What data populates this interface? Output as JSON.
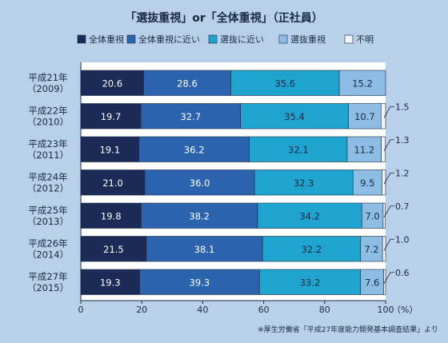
{
  "chart_data": {
    "type": "bar",
    "orientation": "horizontal",
    "stacked": true,
    "title": "「選抜重視」or「全体重視」（正社員）",
    "categories": [
      [
        "平成21年",
        "（2009）"
      ],
      [
        "平成22年",
        "（2010）"
      ],
      [
        "平成23年",
        "（2011）"
      ],
      [
        "平成24年",
        "（2012）"
      ],
      [
        "平成25年",
        "（2013）"
      ],
      [
        "平成26年",
        "（2014）"
      ],
      [
        "平成27年",
        "（2015）"
      ]
    ],
    "series": [
      {
        "name": "全体重視",
        "color": "#1b2a57",
        "text_color": "#ffffff",
        "values": [
          20.6,
          19.7,
          19.1,
          21.0,
          19.8,
          21.5,
          19.3
        ]
      },
      {
        "name": "全体重視に近い",
        "color": "#2b63ae",
        "text_color": "#ffffff",
        "values": [
          28.6,
          32.7,
          36.2,
          36.0,
          38.2,
          38.1,
          39.3
        ]
      },
      {
        "name": "選抜に近い",
        "color": "#1ea4cf",
        "text_color": "#1a2a44",
        "values": [
          35.6,
          35.4,
          32.1,
          32.3,
          34.2,
          32.2,
          33.2
        ]
      },
      {
        "name": "選抜重視",
        "color": "#8dbde4",
        "text_color": "#1a2a44",
        "values": [
          15.2,
          10.7,
          11.2,
          9.5,
          7.0,
          7.2,
          7.6
        ]
      },
      {
        "name": "不明",
        "color": "#f3f3f3",
        "text_color": "#1a2a44",
        "values": [
          0,
          1.5,
          1.3,
          1.2,
          0.7,
          1.0,
          0.6
        ]
      }
    ],
    "unknown_labels": [
      "",
      "1.5",
      "1.3",
      "1.2",
      "0.7",
      "1.0",
      "0.6"
    ],
    "xlim": [
      0,
      100
    ],
    "xticks": [
      0,
      20,
      40,
      60,
      80,
      100
    ],
    "xunit": "（%）",
    "legend": "top",
    "source": "※厚生労働省「平成27年度能力開発基本調査結果」より"
  }
}
